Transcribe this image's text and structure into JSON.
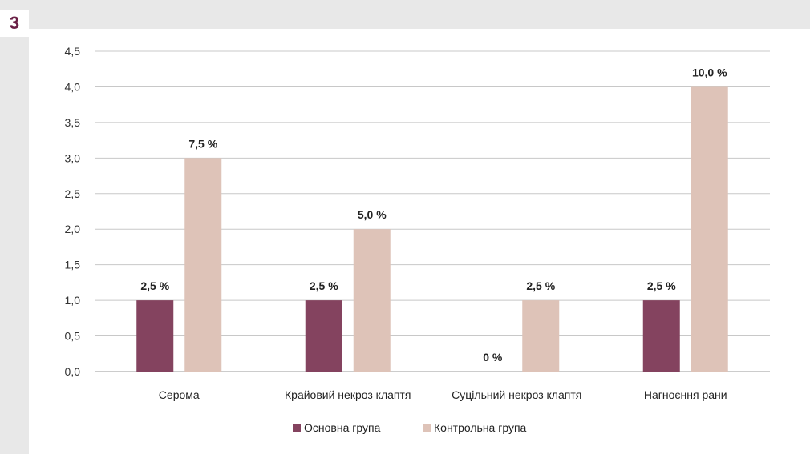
{
  "panel": {
    "label": "3"
  },
  "chart_data": {
    "type": "bar",
    "categories": [
      "Серома",
      "Крайовий некроз клаптя",
      "Суцільний некроз клаптя",
      "Нагноєння рани"
    ],
    "yticks": [
      "0,0",
      "0,5",
      "1,0",
      "1,5",
      "2,0",
      "2,5",
      "3,0",
      "3,5",
      "4,0",
      "4,5"
    ],
    "ylim": [
      0,
      4.5
    ],
    "grid": true,
    "legend_position": "bottom",
    "series": [
      {
        "name": "Основна група",
        "color": "#84435f",
        "values": [
          1.0,
          1.0,
          0,
          1.0
        ],
        "labels": [
          "2,5 %",
          "2,5 %",
          "0 %",
          "2,5 %"
        ]
      },
      {
        "name": "Контрольна група",
        "color": "#dec3b8",
        "values": [
          3.0,
          2.0,
          1.0,
          4.0
        ],
        "labels": [
          "7,5 %",
          "5,0 %",
          "2,5 %",
          "10,0 %"
        ]
      }
    ]
  }
}
